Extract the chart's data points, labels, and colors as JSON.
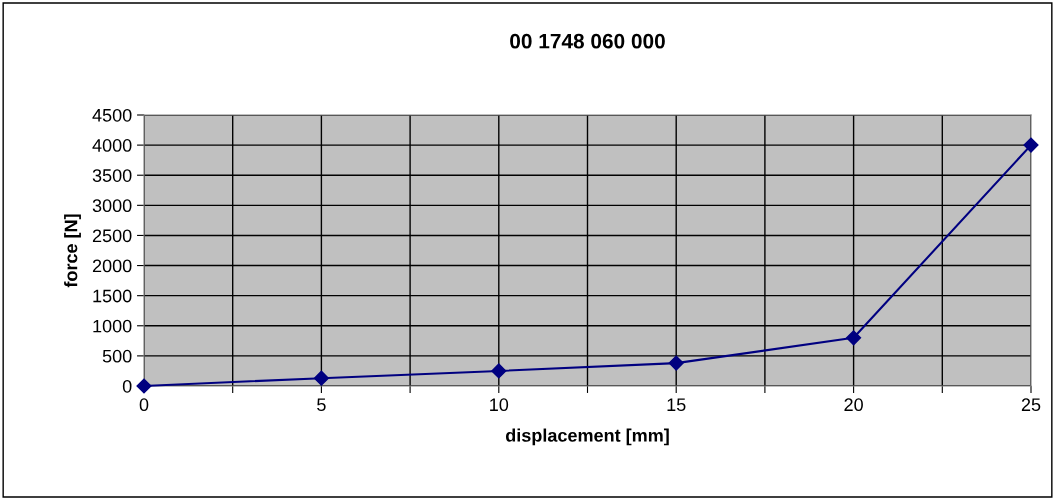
{
  "chart_data": {
    "type": "line",
    "title": "00 1748 060 000",
    "xlabel": "displacement [mm]",
    "ylabel": "force [N]",
    "x": [
      0,
      5,
      10,
      15,
      20,
      25
    ],
    "series": [
      {
        "color": "#000080",
        "values": [
          0,
          130,
          250,
          380,
          800,
          4000
        ]
      }
    ],
    "xlim": [
      0,
      25
    ],
    "ylim": [
      0,
      4500
    ],
    "xticks": [
      0,
      {
        "value": 2.5,
        "label": null
      },
      5,
      {
        "value": 7.5,
        "label": null
      },
      10,
      {
        "value": 12.5,
        "label": null
      },
      15,
      {
        "value": 17.5,
        "label": null
      },
      20,
      {
        "value": 22.5,
        "label": null
      },
      25
    ],
    "yticks": [
      0,
      500,
      1000,
      1500,
      2000,
      2500,
      3000,
      3500,
      4000,
      4500
    ],
    "grid": true,
    "legend": false,
    "marker": "diamond",
    "line_style": "solid"
  }
}
